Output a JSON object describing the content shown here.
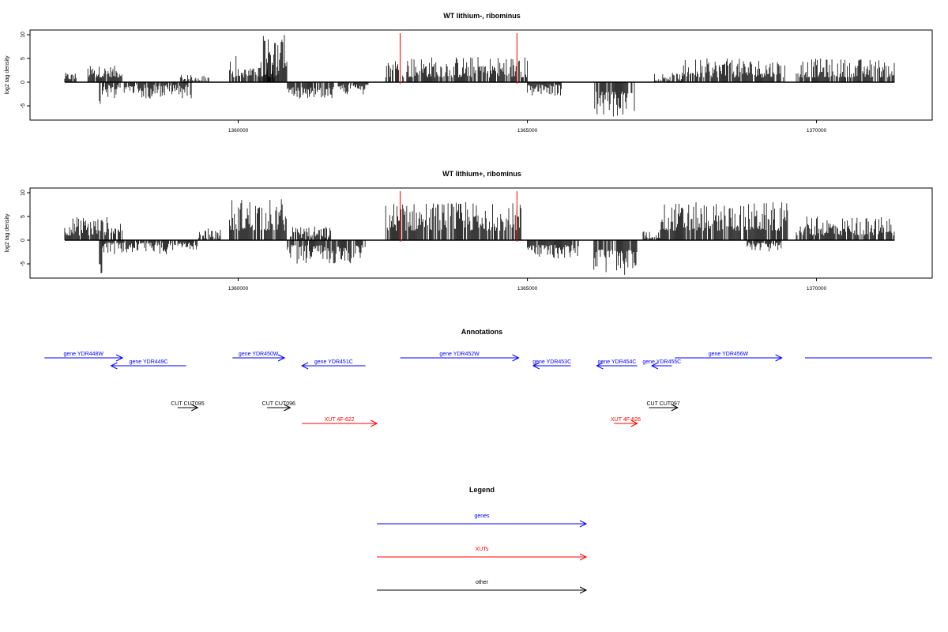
{
  "colors": {
    "gene": "#0000ff",
    "xut": "#ff0000",
    "other": "#000000",
    "marker": "#ff0000",
    "bar": "#000000"
  },
  "chart_data": [
    {
      "type": "bar",
      "title": "WT lithium-, ribominus",
      "xlabel": "",
      "ylabel": "log2 tag density",
      "xlim": [
        1356400,
        1372000
      ],
      "ylim": [
        -8,
        11
      ],
      "x_ticks": [
        1360000,
        1365000,
        1370000
      ],
      "y_ticks": [
        -5,
        0,
        5,
        10
      ],
      "markers": [
        1362800,
        1364820
      ],
      "bins": [
        {
          "range": [
            1357000,
            1357200
          ],
          "sign": 1,
          "min": 0.5,
          "max": 2
        },
        {
          "range": [
            1357400,
            1358000
          ],
          "sign": 1,
          "min": 1,
          "max": 3.5
        },
        {
          "range": [
            1357600,
            1357620
          ],
          "sign": -1,
          "min": 4,
          "max": 5
        },
        {
          "range": [
            1357650,
            1358600
          ],
          "sign": -1,
          "min": 0.5,
          "max": 3.5
        },
        {
          "range": [
            1358600,
            1359200
          ],
          "sign": -1,
          "min": 0.5,
          "max": 3.5
        },
        {
          "range": [
            1359000,
            1359500
          ],
          "sign": 1,
          "min": 0.3,
          "max": 1.5
        },
        {
          "range": [
            1359850,
            1360000
          ],
          "sign": 1,
          "min": 1,
          "max": 6
        },
        {
          "range": [
            1360000,
            1360700
          ],
          "sign": 1,
          "min": 1,
          "max": 3
        },
        {
          "range": [
            1360350,
            1360850
          ],
          "sign": 1,
          "min": 3,
          "max": 10
        },
        {
          "range": [
            1360850,
            1361650
          ],
          "sign": -1,
          "min": 1,
          "max": 3.5
        },
        {
          "range": [
            1361700,
            1362250
          ],
          "sign": -1,
          "min": 0.5,
          "max": 3
        },
        {
          "range": [
            1362550,
            1365000
          ],
          "sign": 1,
          "min": 1,
          "max": 5.5
        },
        {
          "range": [
            1365000,
            1365650
          ],
          "sign": -1,
          "min": 0.5,
          "max": 3
        },
        {
          "range": [
            1366150,
            1366850
          ],
          "sign": -1,
          "min": 2,
          "max": 7.5
        },
        {
          "range": [
            1367200,
            1367700
          ],
          "sign": 1,
          "min": 0.3,
          "max": 2
        },
        {
          "range": [
            1367700,
            1369450
          ],
          "sign": 1,
          "min": 1,
          "max": 5
        },
        {
          "range": [
            1369650,
            1371350
          ],
          "sign": 1,
          "min": 1,
          "max": 5
        }
      ]
    },
    {
      "type": "bar",
      "title": "WT lithium+, ribominus",
      "xlabel": "",
      "ylabel": "log2 tag density",
      "xlim": [
        1356400,
        1372000
      ],
      "ylim": [
        -8,
        11
      ],
      "x_ticks": [
        1360000,
        1365000,
        1370000
      ],
      "y_ticks": [
        -5,
        0,
        5,
        10
      ],
      "markers": [
        1362800,
        1364820
      ],
      "bins": [
        {
          "range": [
            1357000,
            1358000
          ],
          "sign": 1,
          "min": 1,
          "max": 5
        },
        {
          "range": [
            1357600,
            1357650
          ],
          "sign": -1,
          "min": 5,
          "max": 7
        },
        {
          "range": [
            1357650,
            1358900
          ],
          "sign": -1,
          "min": 0.5,
          "max": 3
        },
        {
          "range": [
            1358900,
            1359300
          ],
          "sign": -1,
          "min": 0.5,
          "max": 2
        },
        {
          "range": [
            1359300,
            1359700
          ],
          "sign": 1,
          "min": 0.3,
          "max": 2.5
        },
        {
          "range": [
            1359850,
            1360850
          ],
          "sign": 1,
          "min": 2,
          "max": 9
        },
        {
          "range": [
            1360850,
            1362200
          ],
          "sign": -1,
          "min": 1,
          "max": 5
        },
        {
          "range": [
            1360900,
            1361600
          ],
          "sign": 1,
          "min": 0.5,
          "max": 3
        },
        {
          "range": [
            1362550,
            1364900
          ],
          "sign": 1,
          "min": 2,
          "max": 8
        },
        {
          "range": [
            1365000,
            1365900
          ],
          "sign": -1,
          "min": 1,
          "max": 4
        },
        {
          "range": [
            1366150,
            1366900
          ],
          "sign": -1,
          "min": 2,
          "max": 7.5
        },
        {
          "range": [
            1367000,
            1367300
          ],
          "sign": 1,
          "min": 0.3,
          "max": 2
        },
        {
          "range": [
            1367300,
            1369500
          ],
          "sign": 1,
          "min": 2,
          "max": 8
        },
        {
          "range": [
            1368800,
            1369400
          ],
          "sign": -1,
          "min": 0.5,
          "max": 2.5
        },
        {
          "range": [
            1369650,
            1371350
          ],
          "sign": 1,
          "min": 1,
          "max": 5
        }
      ]
    }
  ],
  "annotations": {
    "title": "Annotations",
    "items": [
      {
        "label": "gene YDR448W",
        "kind": "gene",
        "start": 1356650,
        "end": 1358000,
        "dir": "+",
        "track": 0
      },
      {
        "label": "gene YDR449C",
        "kind": "gene",
        "start": 1357800,
        "end": 1359100,
        "dir": "-",
        "track": 1
      },
      {
        "label": "gene YDR450W",
        "kind": "gene",
        "start": 1359900,
        "end": 1360800,
        "dir": "+",
        "track": 0
      },
      {
        "label": "gene YDR451C",
        "kind": "gene",
        "start": 1361100,
        "end": 1362200,
        "dir": "-",
        "track": 1
      },
      {
        "label": "gene YDR452W",
        "kind": "gene",
        "start": 1362800,
        "end": 1364850,
        "dir": "+",
        "track": 0
      },
      {
        "label": "gene YDR453C",
        "kind": "gene",
        "start": 1365100,
        "end": 1365750,
        "dir": "-",
        "track": 1
      },
      {
        "label": "gene YDR454C",
        "kind": "gene",
        "start": 1366200,
        "end": 1366900,
        "dir": "-",
        "track": 1
      },
      {
        "label": "gene YDR455C",
        "kind": "gene",
        "start": 1367150,
        "end": 1367500,
        "dir": "-",
        "track": 1
      },
      {
        "label": "gene YDR456W",
        "kind": "gene",
        "start": 1367550,
        "end": 1369400,
        "dir": "+",
        "track": 0
      },
      {
        "label": "",
        "kind": "gene",
        "start": 1369800,
        "end": 1372000,
        "dir": "none",
        "track": 0
      },
      {
        "label": "CUT CUT095",
        "kind": "other",
        "start": 1358950,
        "end": 1359300,
        "dir": "+",
        "track": 2
      },
      {
        "label": "CUT CUT096",
        "kind": "other",
        "start": 1360500,
        "end": 1360900,
        "dir": "+",
        "track": 2
      },
      {
        "label": "XUT 4F-622",
        "kind": "xut",
        "start": 1361100,
        "end": 1362400,
        "dir": "+",
        "track": 3
      },
      {
        "label": "CUT CUT097",
        "kind": "other",
        "start": 1367100,
        "end": 1367600,
        "dir": "+",
        "track": 2
      },
      {
        "label": "XUT 4F-626",
        "kind": "xut",
        "start": 1366500,
        "end": 1366900,
        "dir": "+",
        "track": 3
      }
    ]
  },
  "legend": {
    "title": "Legend",
    "items": [
      {
        "label": "genes",
        "kind": "gene"
      },
      {
        "label": "XUTs",
        "kind": "xut"
      },
      {
        "label": "other",
        "kind": "other"
      }
    ]
  }
}
